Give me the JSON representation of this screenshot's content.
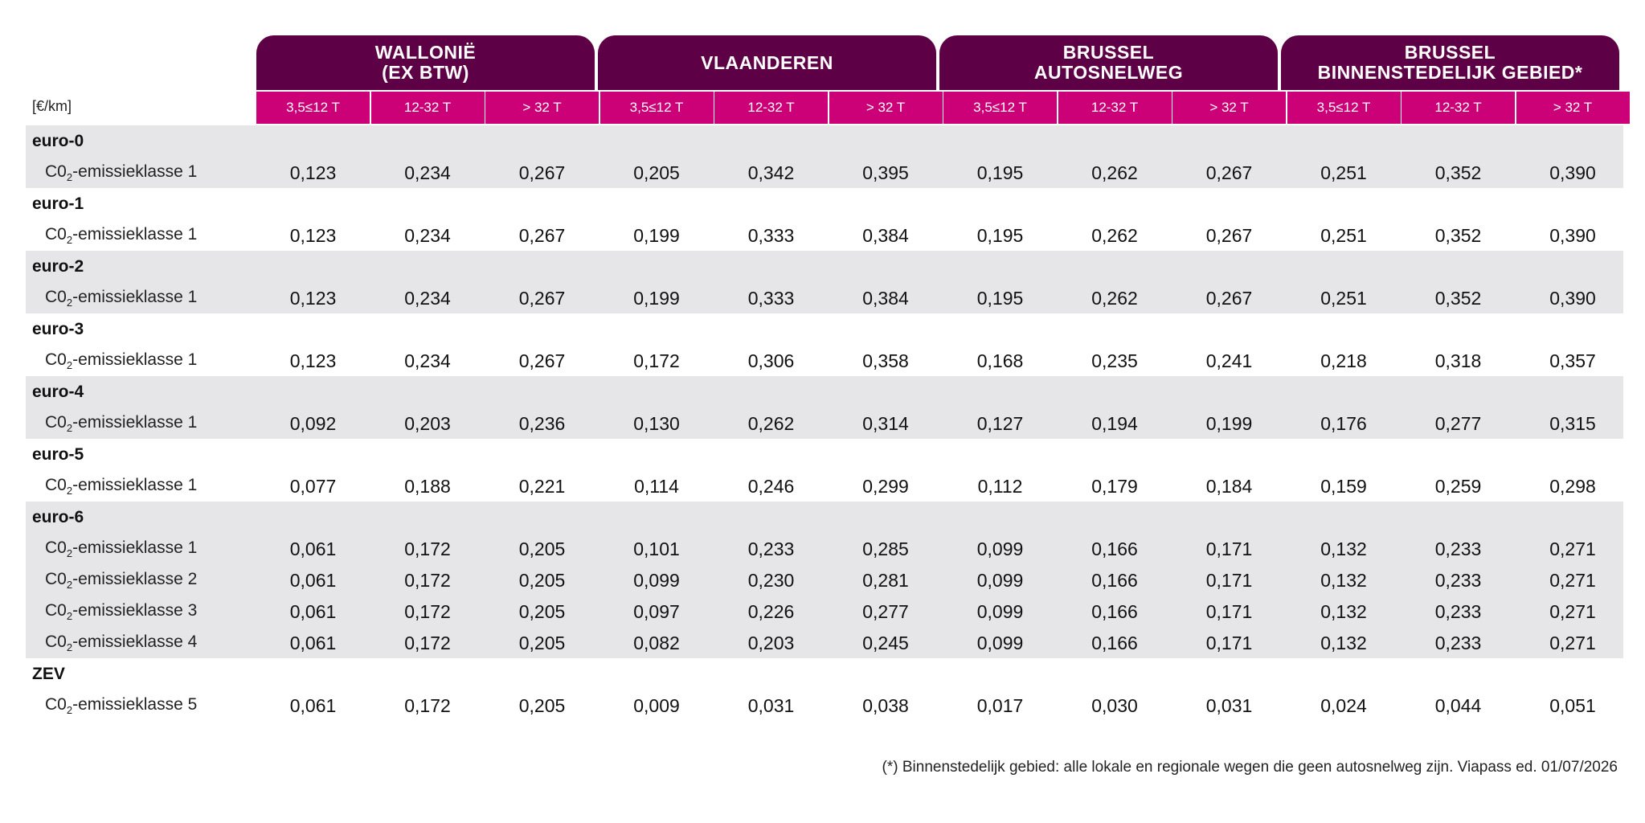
{
  "unit_label": "[€/km]",
  "regions": [
    "WALLONIË\n(EX BTW)",
    "VLAANDEREN",
    "BRUSSEL\nAUTOSNELWEG",
    "BRUSSEL\nBINNENSTEDELIJK GEBIED*"
  ],
  "subheaders": [
    "3,5≤12 T",
    "12-32 T",
    "> 32 T"
  ],
  "groups": [
    {
      "name": "euro-0",
      "rows": [
        {
          "label": "C0",
          "sub": "2",
          "suffix": "-emissieklasse 1",
          "values": [
            "0,123",
            "0,234",
            "0,267",
            "0,205",
            "0,342",
            "0,395",
            "0,195",
            "0,262",
            "0,267",
            "0,251",
            "0,352",
            "0,390"
          ]
        }
      ]
    },
    {
      "name": "euro-1",
      "rows": [
        {
          "label": "C0",
          "sub": "2",
          "suffix": "-emissieklasse 1",
          "values": [
            "0,123",
            "0,234",
            "0,267",
            "0,199",
            "0,333",
            "0,384",
            "0,195",
            "0,262",
            "0,267",
            "0,251",
            "0,352",
            "0,390"
          ]
        }
      ]
    },
    {
      "name": "euro-2",
      "rows": [
        {
          "label": "C0",
          "sub": "2",
          "suffix": "-emissieklasse 1",
          "values": [
            "0,123",
            "0,234",
            "0,267",
            "0,199",
            "0,333",
            "0,384",
            "0,195",
            "0,262",
            "0,267",
            "0,251",
            "0,352",
            "0,390"
          ]
        }
      ]
    },
    {
      "name": "euro-3",
      "rows": [
        {
          "label": "C0",
          "sub": "2",
          "suffix": "-emissieklasse 1",
          "values": [
            "0,123",
            "0,234",
            "0,267",
            "0,172",
            "0,306",
            "0,358",
            "0,168",
            "0,235",
            "0,241",
            "0,218",
            "0,318",
            "0,357"
          ]
        }
      ]
    },
    {
      "name": "euro-4",
      "rows": [
        {
          "label": "C0",
          "sub": "2",
          "suffix": "-emissieklasse 1",
          "values": [
            "0,092",
            "0,203",
            "0,236",
            "0,130",
            "0,262",
            "0,314",
            "0,127",
            "0,194",
            "0,199",
            "0,176",
            "0,277",
            "0,315"
          ]
        }
      ]
    },
    {
      "name": "euro-5",
      "rows": [
        {
          "label": "C0",
          "sub": "2",
          "suffix": "-emissieklasse 1",
          "values": [
            "0,077",
            "0,188",
            "0,221",
            "0,114",
            "0,246",
            "0,299",
            "0,112",
            "0,179",
            "0,184",
            "0,159",
            "0,259",
            "0,298"
          ]
        }
      ]
    },
    {
      "name": "euro-6",
      "rows": [
        {
          "label": "C0",
          "sub": "2",
          "suffix": "-emissieklasse 1",
          "values": [
            "0,061",
            "0,172",
            "0,205",
            "0,101",
            "0,233",
            "0,285",
            "0,099",
            "0,166",
            "0,171",
            "0,132",
            "0,233",
            "0,271"
          ]
        },
        {
          "label": "C0",
          "sub": "2",
          "suffix": "-emissieklasse 2",
          "values": [
            "0,061",
            "0,172",
            "0,205",
            "0,099",
            "0,230",
            "0,281",
            "0,099",
            "0,166",
            "0,171",
            "0,132",
            "0,233",
            "0,271"
          ]
        },
        {
          "label": "C0",
          "sub": "2",
          "suffix": "-emissieklasse 3",
          "values": [
            "0,061",
            "0,172",
            "0,205",
            "0,097",
            "0,226",
            "0,277",
            "0,099",
            "0,166",
            "0,171",
            "0,132",
            "0,233",
            "0,271"
          ]
        },
        {
          "label": "C0",
          "sub": "2",
          "suffix": "-emissieklasse 4",
          "values": [
            "0,061",
            "0,172",
            "0,205",
            "0,082",
            "0,203",
            "0,245",
            "0,099",
            "0,166",
            "0,171",
            "0,132",
            "0,233",
            "0,271"
          ]
        }
      ]
    },
    {
      "name": "ZEV",
      "rows": [
        {
          "label": "C0",
          "sub": "2",
          "suffix": "-emissieklasse 5",
          "values": [
            "0,061",
            "0,172",
            "0,205",
            "0,009",
            "0,031",
            "0,038",
            "0,017",
            "0,030",
            "0,031",
            "0,024",
            "0,044",
            "0,051"
          ]
        }
      ]
    }
  ],
  "footnote": "(*) Binnenstedelijk gebied: alle lokale en regionale wegen die geen autosnelweg zijn. Viapass ed. 01/07/2026",
  "colors": {
    "region_header": "#5e0046",
    "sub_header": "#cc0077",
    "band": "#e6e6e9"
  }
}
